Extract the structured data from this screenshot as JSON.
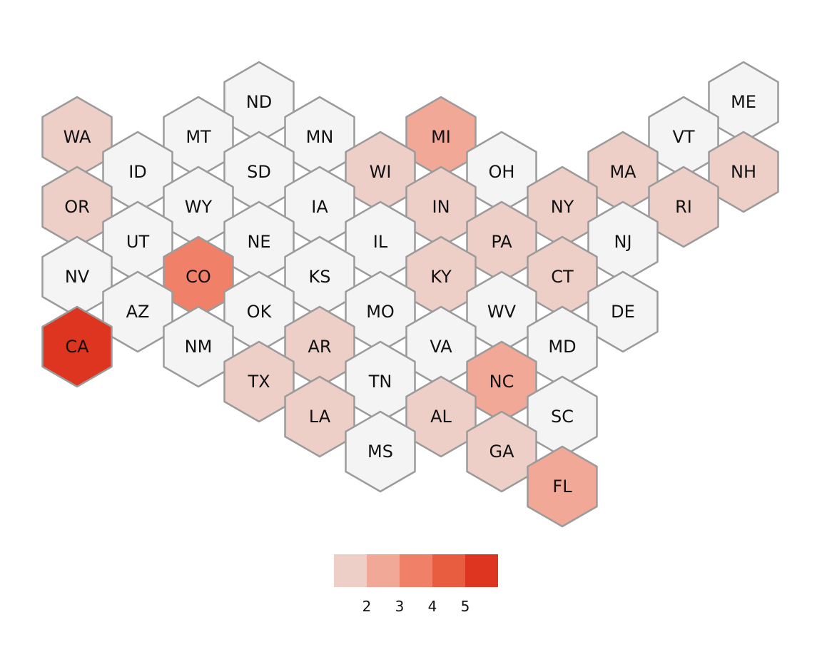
{
  "map": {
    "type": "hex-tile-choropleth",
    "fill_missing": "#f4f4f4",
    "stroke": "#9b9b9b",
    "states": [
      {
        "abbr": "ND",
        "value": null
      },
      {
        "abbr": "ME",
        "value": null
      },
      {
        "abbr": "WA",
        "value": 1
      },
      {
        "abbr": "MT",
        "value": null
      },
      {
        "abbr": "MN",
        "value": null
      },
      {
        "abbr": "MI",
        "value": 2
      },
      {
        "abbr": "VT",
        "value": null
      },
      {
        "abbr": "ID",
        "value": null
      },
      {
        "abbr": "SD",
        "value": null
      },
      {
        "abbr": "WI",
        "value": 1
      },
      {
        "abbr": "OH",
        "value": null
      },
      {
        "abbr": "MA",
        "value": 1
      },
      {
        "abbr": "NH",
        "value": 1
      },
      {
        "abbr": "OR",
        "value": 1
      },
      {
        "abbr": "WY",
        "value": null
      },
      {
        "abbr": "IA",
        "value": null
      },
      {
        "abbr": "IN",
        "value": 1
      },
      {
        "abbr": "NY",
        "value": 1
      },
      {
        "abbr": "RI",
        "value": 1
      },
      {
        "abbr": "UT",
        "value": null
      },
      {
        "abbr": "NE",
        "value": null
      },
      {
        "abbr": "IL",
        "value": null
      },
      {
        "abbr": "PA",
        "value": 1
      },
      {
        "abbr": "NJ",
        "value": null
      },
      {
        "abbr": "NV",
        "value": null
      },
      {
        "abbr": "CO",
        "value": 3
      },
      {
        "abbr": "KS",
        "value": null
      },
      {
        "abbr": "KY",
        "value": 1
      },
      {
        "abbr": "CT",
        "value": 1
      },
      {
        "abbr": "AZ",
        "value": null
      },
      {
        "abbr": "OK",
        "value": null
      },
      {
        "abbr": "MO",
        "value": null
      },
      {
        "abbr": "WV",
        "value": null
      },
      {
        "abbr": "DE",
        "value": null
      },
      {
        "abbr": "CA",
        "value": 5
      },
      {
        "abbr": "NM",
        "value": null
      },
      {
        "abbr": "AR",
        "value": 1
      },
      {
        "abbr": "VA",
        "value": null
      },
      {
        "abbr": "MD",
        "value": null
      },
      {
        "abbr": "TX",
        "value": 1
      },
      {
        "abbr": "TN",
        "value": null
      },
      {
        "abbr": "NC",
        "value": 2
      },
      {
        "abbr": "LA",
        "value": 1
      },
      {
        "abbr": "AL",
        "value": 1
      },
      {
        "abbr": "SC",
        "value": null
      },
      {
        "abbr": "MS",
        "value": null
      },
      {
        "abbr": "GA",
        "value": 1
      },
      {
        "abbr": "FL",
        "value": 2
      }
    ]
  },
  "legend": {
    "colors": [
      "#eecfc8",
      "#f2a896",
      "#f08068",
      "#e85c40",
      "#de3520"
    ],
    "ticks": [
      "2",
      "3",
      "4",
      "5"
    ]
  }
}
